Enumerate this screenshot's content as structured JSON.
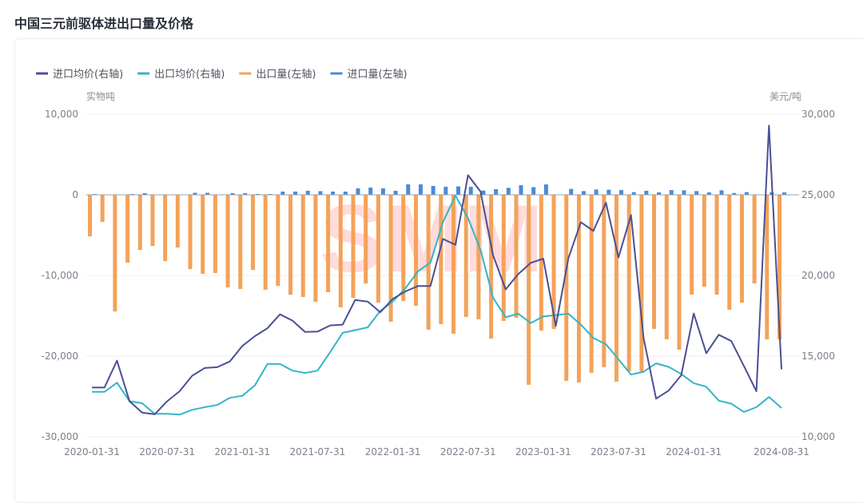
{
  "title": "中国三元前驱体进出口量及价格",
  "watermark": "SMM",
  "chart_data": {
    "type": "bar+line",
    "title": "中国三元前驱体进出口量及价格",
    "left_axis_label": "实物吨",
    "right_axis_label": "美元/吨",
    "left_ylim": [
      -30000,
      10000
    ],
    "right_ylim": [
      10000,
      30000
    ],
    "left_ticks": [
      "10,000",
      "0",
      "-10,000",
      "-20,000",
      "-30,000"
    ],
    "right_ticks": [
      "30,000",
      "25,000",
      "20,000",
      "15,000",
      "10,000"
    ],
    "x_tick_labels": [
      "2020-01-31",
      "2020-07-31",
      "2021-01-31",
      "2021-07-31",
      "2022-01-31",
      "2022-07-31",
      "2023-01-31",
      "2023-07-31",
      "2024-01-31",
      "2024-08-31"
    ],
    "grid": true,
    "legend_position": "top-left",
    "categories": [
      "2020-01-31",
      "2020-02-29",
      "2020-03-31",
      "2020-04-30",
      "2020-05-31",
      "2020-06-30",
      "2020-07-31",
      "2020-08-31",
      "2020-09-30",
      "2020-10-31",
      "2020-11-30",
      "2020-12-31",
      "2021-01-31",
      "2021-02-28",
      "2021-03-31",
      "2021-04-30",
      "2021-05-31",
      "2021-06-30",
      "2021-07-31",
      "2021-08-31",
      "2021-09-30",
      "2021-10-31",
      "2021-11-30",
      "2021-12-31",
      "2022-01-31",
      "2022-02-28",
      "2022-03-31",
      "2022-04-30",
      "2022-05-31",
      "2022-06-30",
      "2022-07-31",
      "2022-08-31",
      "2022-09-30",
      "2022-10-31",
      "2022-11-30",
      "2022-12-31",
      "2023-01-31",
      "2023-02-28",
      "2023-03-31",
      "2023-04-30",
      "2023-05-31",
      "2023-06-30",
      "2023-07-31",
      "2023-08-31",
      "2023-09-30",
      "2023-10-31",
      "2023-11-30",
      "2023-12-31",
      "2024-01-31",
      "2024-02-29",
      "2024-03-31",
      "2024-04-30",
      "2024-05-31",
      "2024-06-30",
      "2024-07-31",
      "2024-08-31"
    ],
    "series": [
      {
        "name": "进口均价(右轴)",
        "type": "line",
        "axis": "right",
        "color": "#4b4f96",
        "values": [
          13050,
          13050,
          14720,
          12200,
          11500,
          11390,
          12200,
          12820,
          13780,
          14260,
          14310,
          14670,
          15630,
          16240,
          16730,
          17590,
          17200,
          16500,
          16520,
          16900,
          16950,
          18480,
          18380,
          17720,
          18550,
          19010,
          19340,
          19340,
          22260,
          21900,
          26220,
          25200,
          21240,
          19140,
          20080,
          20780,
          21040,
          16870,
          21070,
          23300,
          22760,
          24510,
          21120,
          23750,
          16120,
          12360,
          12860,
          13810,
          17640,
          15180,
          16320,
          15930,
          14390,
          12820,
          29290,
          14180
        ]
      },
      {
        "name": "出口均价(右轴)",
        "type": "line",
        "axis": "right",
        "color": "#36b4c6",
        "values": [
          12780,
          12780,
          13350,
          12200,
          12080,
          11420,
          11420,
          11370,
          11670,
          11830,
          11970,
          12410,
          12540,
          13190,
          14510,
          14510,
          14100,
          13950,
          14100,
          15240,
          16440,
          16610,
          16780,
          17800,
          18380,
          19200,
          20250,
          20800,
          23300,
          24950,
          23560,
          21580,
          18610,
          17410,
          17630,
          17050,
          17460,
          17540,
          17630,
          16950,
          16120,
          15740,
          14800,
          13850,
          14030,
          14550,
          14330,
          13890,
          13320,
          13100,
          12240,
          12050,
          11540,
          11830,
          12460,
          11780
        ]
      },
      {
        "name": "出口量(左轴)",
        "type": "bar",
        "axis": "left",
        "color": "#f4a259",
        "values": [
          -5150,
          -3360,
          -14460,
          -8420,
          -6830,
          -6340,
          -8220,
          -6530,
          -9210,
          -9800,
          -9700,
          -11480,
          -11680,
          -9310,
          -11780,
          -11290,
          -12380,
          -12670,
          -13270,
          -12080,
          -13960,
          -12770,
          -11000,
          -13370,
          -15740,
          -13170,
          -13760,
          -16730,
          -16040,
          -17230,
          -15150,
          -15440,
          -17820,
          -15640,
          -15250,
          -23560,
          -16830,
          -16630,
          -23070,
          -23270,
          -22080,
          -21380,
          -23170,
          -21880,
          -22080,
          -16630,
          -17920,
          -19210,
          -12370,
          -11390,
          -12370,
          -14260,
          -13370,
          -10990,
          -17920,
          -17920
        ]
      },
      {
        "name": "进口量(左轴)",
        "type": "bar",
        "axis": "left",
        "color": "#4a8bd6",
        "values": [
          100,
          0,
          50,
          100,
          200,
          50,
          50,
          0,
          250,
          250,
          50,
          200,
          200,
          100,
          100,
          400,
          400,
          500,
          450,
          400,
          400,
          800,
          900,
          800,
          500,
          1300,
          1300,
          1100,
          1000,
          1050,
          1000,
          530,
          700,
          860,
          1190,
          960,
          1290,
          0,
          730,
          460,
          660,
          630,
          590,
          330,
          500,
          300,
          590,
          560,
          460,
          300,
          560,
          230,
          330,
          50,
          330,
          300
        ]
      }
    ]
  }
}
